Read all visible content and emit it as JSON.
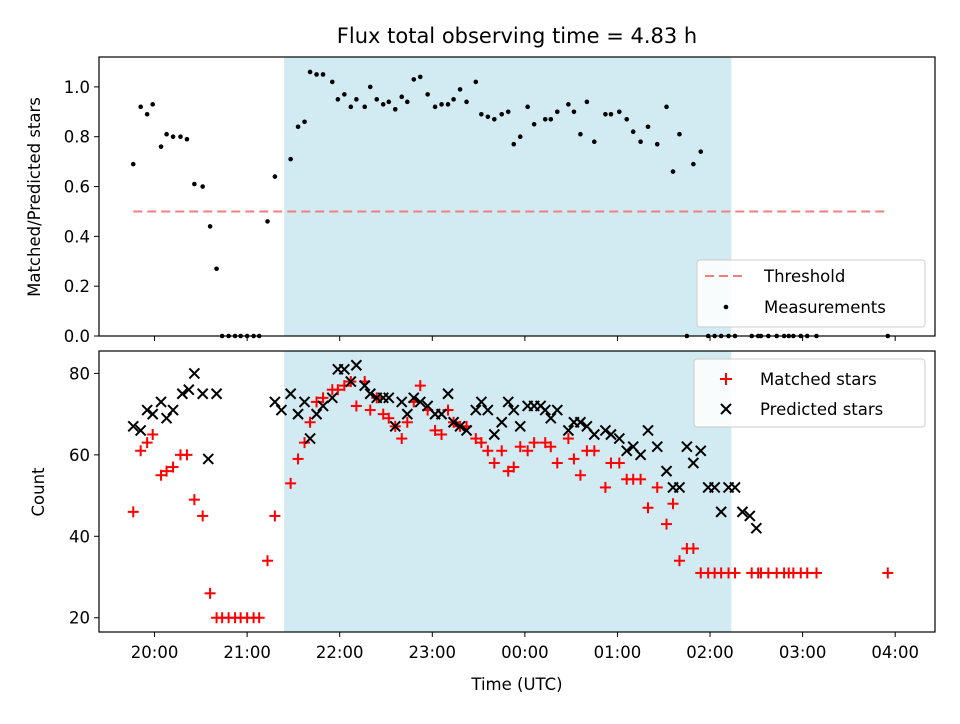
{
  "chart_data": [
    {
      "type": "scatter",
      "title": "Flux total observing time = 4.83 h",
      "xlabel": "",
      "ylabel": "Matched/Predicted stars",
      "xlim_hours": [
        19.4,
        28.43
      ],
      "ylim": [
        0,
        1.12
      ],
      "yticks": [
        "0.0",
        "0.2",
        "0.4",
        "0.6",
        "0.8",
        "1.0"
      ],
      "observing_window_hours": [
        21.4,
        26.23
      ],
      "legend_position": "lower-right",
      "threshold": {
        "name": "Threshold",
        "value": 0.5,
        "x_range": [
          19.77,
          27.92
        ],
        "color": "#f08080"
      },
      "series": [
        {
          "name": "Measurements",
          "color": "#000000",
          "x": [
            19.77,
            19.85,
            19.92,
            19.98,
            20.07,
            20.13,
            20.2,
            20.28,
            20.35,
            20.43,
            20.52,
            20.6,
            20.67,
            20.73,
            20.8,
            20.87,
            20.93,
            21.0,
            21.07,
            21.13,
            21.22,
            21.3,
            21.47,
            21.55,
            21.62,
            21.68,
            21.75,
            21.82,
            21.92,
            21.98,
            22.05,
            22.12,
            22.18,
            22.27,
            22.33,
            22.4,
            22.47,
            22.53,
            22.6,
            22.67,
            22.73,
            22.8,
            22.87,
            22.95,
            23.03,
            23.1,
            23.17,
            23.23,
            23.3,
            23.37,
            23.47,
            23.53,
            23.6,
            23.67,
            23.75,
            23.82,
            23.88,
            23.95,
            24.03,
            24.1,
            24.22,
            24.28,
            24.35,
            24.47,
            24.53,
            24.6,
            24.67,
            24.75,
            24.87,
            24.93,
            25.02,
            25.1,
            25.17,
            25.25,
            25.33,
            25.43,
            25.53,
            25.6,
            25.67,
            25.75,
            25.82,
            25.9,
            25.98,
            26.05,
            26.12,
            26.2,
            26.27,
            26.45,
            26.52,
            26.55,
            26.63,
            26.72,
            26.8,
            26.85,
            26.9,
            26.98,
            27.05,
            27.15,
            27.92
          ],
          "values": [
            0.69,
            0.92,
            0.89,
            0.93,
            0.76,
            0.81,
            0.8,
            0.8,
            0.79,
            0.61,
            0.6,
            0.44,
            0.27,
            0.0,
            0.0,
            0.0,
            0.0,
            0.0,
            0.0,
            0.0,
            0.46,
            0.64,
            0.71,
            0.84,
            0.86,
            1.06,
            1.05,
            1.05,
            1.02,
            0.95,
            0.97,
            0.92,
            0.95,
            0.92,
            1.0,
            0.95,
            0.93,
            0.94,
            0.91,
            0.96,
            0.94,
            1.03,
            1.04,
            0.97,
            0.92,
            0.93,
            0.93,
            0.95,
            0.99,
            0.94,
            1.02,
            0.89,
            0.88,
            0.87,
            0.89,
            0.9,
            0.77,
            0.8,
            0.92,
            0.85,
            0.87,
            0.87,
            0.9,
            0.93,
            0.9,
            0.81,
            0.94,
            0.78,
            0.89,
            0.89,
            0.9,
            0.87,
            0.82,
            0.78,
            0.84,
            0.77,
            0.92,
            0.66,
            0.81,
            0.0,
            0.69,
            0.74,
            0.0,
            0.0,
            0.0,
            0.0,
            0.0,
            0.0,
            0.0,
            0.0,
            0.0,
            0.0,
            0.0,
            0.0,
            0.0,
            0.0,
            0.0,
            0.0,
            0.0
          ]
        }
      ]
    },
    {
      "type": "scatter",
      "title": "",
      "xlabel": "Time (UTC)",
      "ylabel": "Count",
      "xlim_hours": [
        19.4,
        28.43
      ],
      "ylim": [
        16.5,
        85.5
      ],
      "yticks": [
        "20",
        "40",
        "60",
        "80"
      ],
      "xticks": [
        {
          "hour": 20,
          "label": "20:00"
        },
        {
          "hour": 21,
          "label": "21:00"
        },
        {
          "hour": 22,
          "label": "22:00"
        },
        {
          "hour": 23,
          "label": "23:00"
        },
        {
          "hour": 24,
          "label": "00:00"
        },
        {
          "hour": 25,
          "label": "01:00"
        },
        {
          "hour": 26,
          "label": "02:00"
        },
        {
          "hour": 27,
          "label": "03:00"
        },
        {
          "hour": 28,
          "label": "04:00"
        }
      ],
      "observing_window_hours": [
        21.4,
        26.23
      ],
      "legend_position": "upper-right",
      "series": [
        {
          "name": "Matched stars",
          "marker": "plus",
          "color": "#ff0000",
          "x": [
            19.77,
            19.85,
            19.92,
            19.98,
            20.07,
            20.13,
            20.2,
            20.28,
            20.35,
            20.43,
            20.52,
            20.6,
            20.67,
            20.73,
            20.8,
            20.87,
            20.93,
            21.0,
            21.07,
            21.13,
            21.22,
            21.3,
            21.47,
            21.55,
            21.62,
            21.68,
            21.75,
            21.82,
            21.92,
            21.98,
            22.05,
            22.12,
            22.18,
            22.27,
            22.33,
            22.4,
            22.47,
            22.53,
            22.6,
            22.67,
            22.73,
            22.8,
            22.87,
            22.95,
            23.03,
            23.1,
            23.17,
            23.23,
            23.3,
            23.37,
            23.47,
            23.53,
            23.6,
            23.67,
            23.75,
            23.82,
            23.88,
            23.95,
            24.03,
            24.1,
            24.22,
            24.28,
            24.35,
            24.47,
            24.53,
            24.6,
            24.67,
            24.75,
            24.87,
            24.93,
            25.02,
            25.1,
            25.17,
            25.25,
            25.33,
            25.43,
            25.53,
            25.6,
            25.67,
            25.75,
            25.82,
            25.9,
            25.98,
            26.05,
            26.12,
            26.2,
            26.27,
            26.45,
            26.52,
            26.55,
            26.63,
            26.72,
            26.8,
            26.85,
            26.9,
            26.98,
            27.05,
            27.15,
            27.92
          ],
          "values": [
            46,
            61,
            63,
            65,
            55,
            56,
            57,
            60,
            60,
            49,
            45,
            26,
            20,
            20,
            20,
            20,
            20,
            20,
            20,
            20,
            34,
            45,
            53,
            59,
            63,
            68,
            73,
            74,
            76,
            76,
            77,
            78,
            72,
            78,
            71,
            74,
            70,
            69,
            67,
            64,
            68,
            73,
            77,
            71,
            66,
            65,
            71,
            68,
            67,
            67,
            64,
            63,
            61,
            58,
            61,
            56,
            57,
            62,
            61,
            63,
            63,
            62,
            58,
            64,
            59,
            55,
            61,
            61,
            52,
            58,
            58,
            54,
            54,
            54,
            47,
            52,
            43,
            48,
            34,
            37,
            37,
            31,
            31,
            31,
            31,
            31,
            31,
            31,
            31,
            31,
            31,
            31,
            31,
            31,
            31,
            31,
            31,
            31,
            31
          ]
        },
        {
          "name": "Predicted stars",
          "marker": "x",
          "color": "#000000",
          "x": [
            19.77,
            19.85,
            19.92,
            19.98,
            20.07,
            20.13,
            20.2,
            20.3,
            20.37,
            20.43,
            20.52,
            20.58,
            20.67,
            21.3,
            21.37,
            21.47,
            21.55,
            21.62,
            21.68,
            21.75,
            21.82,
            21.92,
            21.98,
            22.05,
            22.12,
            22.18,
            22.27,
            22.33,
            22.4,
            22.47,
            22.53,
            22.6,
            22.67,
            22.73,
            22.8,
            22.87,
            22.95,
            23.03,
            23.1,
            23.17,
            23.23,
            23.3,
            23.37,
            23.47,
            23.53,
            23.6,
            23.67,
            23.75,
            23.82,
            23.88,
            23.95,
            24.03,
            24.1,
            24.17,
            24.22,
            24.28,
            24.35,
            24.47,
            24.53,
            24.6,
            24.67,
            24.75,
            24.87,
            24.93,
            25.02,
            25.1,
            25.17,
            25.25,
            25.33,
            25.43,
            25.53,
            25.6,
            25.67,
            25.75,
            25.82,
            25.9,
            25.98,
            26.05,
            26.12,
            26.2,
            26.27,
            26.35,
            26.43,
            26.5
          ],
          "values": [
            67,
            66,
            71,
            70,
            73,
            69,
            71,
            75,
            76,
            80,
            75,
            59,
            75,
            73,
            71,
            75,
            70,
            73,
            64,
            70,
            72,
            74,
            81,
            81,
            78,
            82,
            77,
            75,
            74,
            74,
            74,
            67,
            73,
            70,
            74,
            73,
            72,
            70,
            70,
            75,
            68,
            67,
            66,
            71,
            73,
            71,
            65,
            68,
            73,
            71,
            67,
            72,
            72,
            72,
            71,
            69,
            71,
            66,
            68,
            68,
            67,
            65,
            66,
            65,
            64,
            61,
            62,
            60,
            66,
            62,
            56,
            52,
            52,
            62,
            58,
            61,
            52,
            52,
            46,
            52,
            52,
            46,
            45,
            42
          ]
        }
      ]
    }
  ]
}
